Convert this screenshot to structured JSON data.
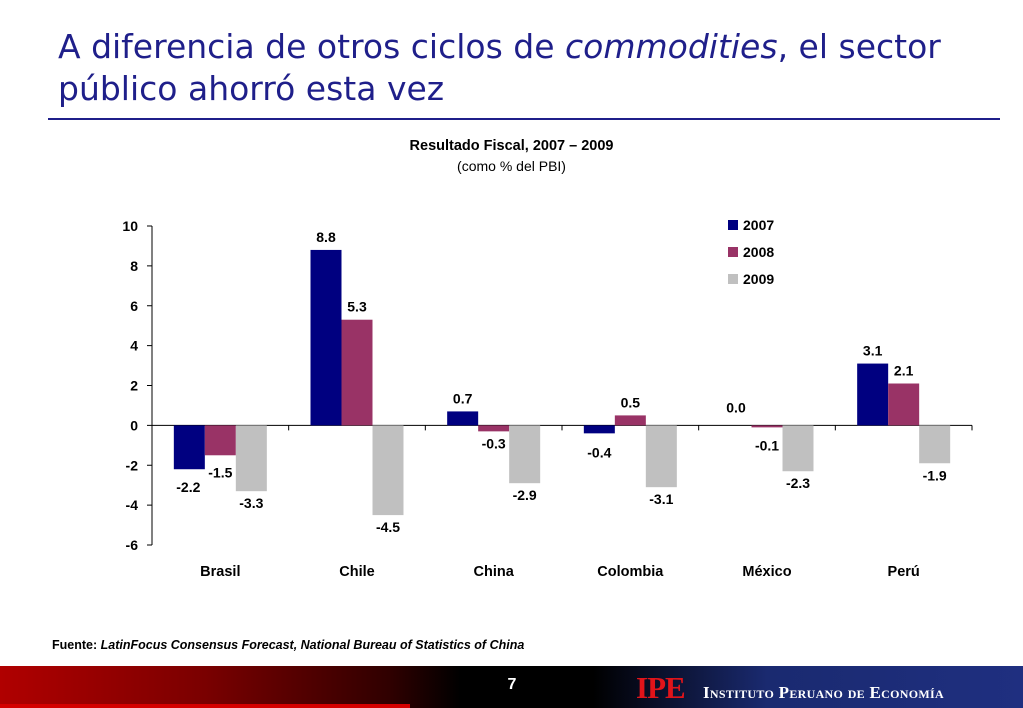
{
  "slide": {
    "title_part1": "A diferencia de otros ciclos de ",
    "title_italic": "commodities",
    "title_part2": ", el sector público ahorró esta vez",
    "page_number": "7"
  },
  "chart_data": {
    "type": "bar",
    "title": "Resultado Fiscal, 2007 – 2009",
    "subtitle": "(como % del PBI)",
    "categories": [
      "Brasil",
      "Chile",
      "China",
      "Colombia",
      "México",
      "Perú"
    ],
    "series": [
      {
        "name": "2007",
        "color": "#000080",
        "values": [
          -2.2,
          8.8,
          0.7,
          -0.4,
          0.0,
          3.1
        ],
        "labels": [
          "-2.2",
          "8.8",
          "0.7",
          "-0.4",
          "0.0",
          "3.1"
        ]
      },
      {
        "name": "2008",
        "color": "#993366",
        "values": [
          -1.5,
          5.3,
          -0.3,
          0.5,
          -0.1,
          2.1
        ],
        "labels": [
          "-1.5",
          "5.3",
          "-0.3",
          "0.5",
          "-0.1",
          "2.1"
        ]
      },
      {
        "name": "2009",
        "color": "#c0c0c0",
        "values": [
          -3.3,
          -4.5,
          -2.9,
          -3.1,
          -2.3,
          -1.9
        ],
        "labels": [
          "-3.3",
          "-4.5",
          "-2.9",
          "-3.1",
          "-2.3",
          "-1.9"
        ]
      }
    ],
    "ylim": [
      -6,
      10
    ],
    "yticks": [
      "10",
      "8",
      "6",
      "4",
      "2",
      "0",
      "-2",
      "-4",
      "-6"
    ],
    "ytick_values": [
      10,
      8,
      6,
      4,
      2,
      0,
      -2,
      -4,
      -6
    ],
    "legend": "top-right",
    "grid": false
  },
  "source": {
    "label": "Fuente: ",
    "text": "LatinFocus Consensus Forecast, National Bureau of Statistics of China"
  },
  "logo": {
    "mark": "IPE",
    "name": "Instituto Peruano de Economía"
  }
}
